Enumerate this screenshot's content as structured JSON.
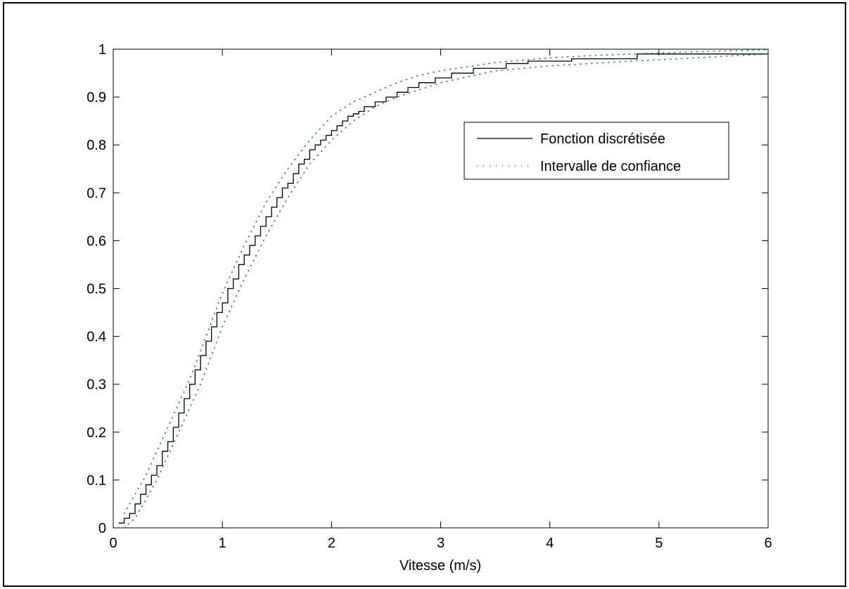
{
  "colors": {
    "curve": "#000000",
    "interval": "#1f7a7a",
    "axes": "#000000",
    "background": "#ffffff"
  },
  "chart_data": {
    "type": "line",
    "title": "",
    "xlabel": "Vitesse (m/s)",
    "ylabel": "",
    "xlim": [
      0,
      6
    ],
    "ylim": [
      0,
      1
    ],
    "xticks": [
      0,
      1,
      2,
      3,
      4,
      5,
      6
    ],
    "xtick_labels": [
      "0",
      "1",
      "2",
      "3",
      "4",
      "5",
      "6"
    ],
    "yticks": [
      0,
      0.1,
      0.2,
      0.3,
      0.4,
      0.5,
      0.6,
      0.7,
      0.8,
      0.9,
      1
    ],
    "ytick_labels": [
      "0",
      "0.1",
      "0.2",
      "0.3",
      "0.4",
      "0.5",
      "0.6",
      "0.7",
      "0.8",
      "0.9",
      "1"
    ],
    "grid": false,
    "legend": {
      "placement": "upper-right",
      "entries": [
        "Fonction discrétisée",
        "Intervalle de confiance"
      ]
    },
    "series": [
      {
        "name": "Fonction discrétisée",
        "style": "solid-step",
        "x": [
          0.05,
          0.1,
          0.15,
          0.2,
          0.25,
          0.3,
          0.35,
          0.4,
          0.45,
          0.5,
          0.55,
          0.6,
          0.65,
          0.7,
          0.75,
          0.8,
          0.85,
          0.9,
          0.95,
          1.0,
          1.05,
          1.1,
          1.15,
          1.2,
          1.25,
          1.3,
          1.35,
          1.4,
          1.45,
          1.5,
          1.55,
          1.6,
          1.65,
          1.7,
          1.75,
          1.8,
          1.85,
          1.9,
          1.95,
          2.0,
          2.05,
          2.1,
          2.15,
          2.2,
          2.25,
          2.3,
          2.4,
          2.5,
          2.6,
          2.7,
          2.8,
          2.95,
          3.1,
          3.3,
          3.6,
          3.8,
          4.2,
          4.8,
          6.0
        ],
        "y": [
          0.01,
          0.02,
          0.03,
          0.05,
          0.07,
          0.09,
          0.11,
          0.13,
          0.16,
          0.18,
          0.21,
          0.24,
          0.27,
          0.3,
          0.33,
          0.36,
          0.39,
          0.42,
          0.45,
          0.47,
          0.5,
          0.52,
          0.55,
          0.57,
          0.59,
          0.61,
          0.63,
          0.65,
          0.67,
          0.69,
          0.71,
          0.72,
          0.74,
          0.76,
          0.77,
          0.79,
          0.8,
          0.81,
          0.82,
          0.83,
          0.84,
          0.85,
          0.86,
          0.865,
          0.87,
          0.88,
          0.89,
          0.9,
          0.91,
          0.92,
          0.93,
          0.94,
          0.95,
          0.96,
          0.97,
          0.975,
          0.98,
          0.99,
          0.99
        ]
      },
      {
        "name": "Intervalle de confiance",
        "style": "dotted",
        "bound": "upper",
        "x": [
          0.1,
          0.2,
          0.3,
          0.4,
          0.5,
          0.6,
          0.7,
          0.8,
          0.9,
          1.0,
          1.2,
          1.4,
          1.6,
          1.8,
          2.0,
          2.2,
          2.4,
          2.6,
          2.8,
          3.0,
          3.5,
          4.0,
          4.5,
          5.0,
          5.5,
          6.0
        ],
        "y": [
          0.03,
          0.07,
          0.11,
          0.16,
          0.21,
          0.26,
          0.31,
          0.37,
          0.43,
          0.49,
          0.59,
          0.68,
          0.75,
          0.81,
          0.86,
          0.89,
          0.91,
          0.93,
          0.945,
          0.955,
          0.972,
          0.982,
          0.988,
          0.992,
          0.996,
          0.999
        ]
      },
      {
        "name": "Intervalle de confiance",
        "style": "dotted",
        "bound": "lower",
        "x": [
          0.1,
          0.2,
          0.3,
          0.4,
          0.5,
          0.6,
          0.7,
          0.8,
          0.9,
          1.0,
          1.2,
          1.4,
          1.6,
          1.8,
          2.0,
          2.2,
          2.4,
          2.6,
          2.8,
          3.0,
          3.5,
          4.0,
          4.5,
          5.0,
          5.5,
          6.0
        ],
        "y": [
          0.0,
          0.02,
          0.06,
          0.1,
          0.15,
          0.2,
          0.25,
          0.3,
          0.36,
          0.42,
          0.52,
          0.61,
          0.69,
          0.76,
          0.81,
          0.85,
          0.88,
          0.9,
          0.915,
          0.93,
          0.955,
          0.965,
          0.972,
          0.978,
          0.984,
          0.99
        ]
      }
    ]
  }
}
